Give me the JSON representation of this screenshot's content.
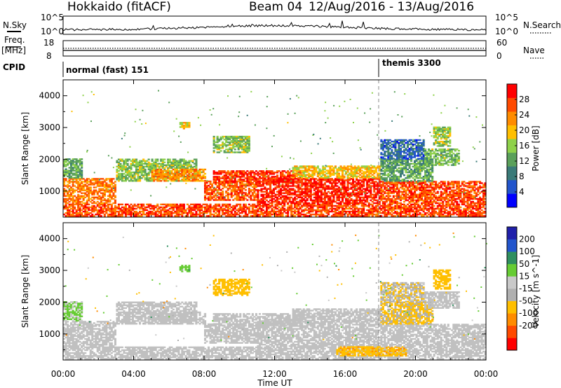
{
  "header": {
    "radar": "Hokkaido (fitACF)",
    "beam": "Beam 04",
    "dates": "12/Aug/2016 - 13/Aug/2016"
  },
  "strip": {
    "nsky_label": "N.Sky",
    "nsky_top_tick": "10^5",
    "nsky_bottom_tick": "10^0",
    "nsearch_label": "N.Search",
    "nsearch_top_tick": "10^5",
    "nsearch_bottom_tick": "10^0",
    "freq_label": "Freq.",
    "freq_unit": "[MHz]",
    "freq_top_tick": "18",
    "freq_bottom_tick": "8",
    "nave_label": "Nave",
    "nave_top_tick": "60",
    "nave_bottom_tick": "0",
    "cpid_label": "CPID",
    "cpid_segments": [
      {
        "label": "normal (fast) 151",
        "start_hour": 0
      },
      {
        "label": "themis 3300",
        "start_hour": 18
      }
    ]
  },
  "colors": {
    "power_scale": [
      "#0000ff",
      "#2255cc",
      "#3a7a78",
      "#5aa05a",
      "#8ed14a",
      "#ffbf00",
      "#ff8c00",
      "#ff4a00",
      "#ff0000"
    ],
    "velocity_scale": [
      "#ff0000",
      "#ff4a00",
      "#ff8c00",
      "#ffbf00",
      "#b0b0b0",
      "#c9c9c9",
      "#66cc33",
      "#2f8f5f",
      "#2255cc",
      "#2020aa"
    ],
    "ground_scatter": "#c0c0c0"
  },
  "chart_data": [
    {
      "type": "heatmap",
      "title": "",
      "parameter": "Power",
      "x_label": "Time UT",
      "y_label": "Slant Range [km]",
      "x_range_hours": [
        0,
        24
      ],
      "y_range_km": [
        180,
        4500
      ],
      "x_ticks": [
        "00:00",
        "04:00",
        "08:00",
        "12:00",
        "16:00",
        "20:00",
        "00:00"
      ],
      "y_ticks": [
        1000,
        2000,
        3000,
        4000
      ],
      "colorbar": {
        "label": "Power [dB]",
        "min": 0,
        "max": 32,
        "ticks": [
          4,
          8,
          12,
          16,
          20,
          24,
          28
        ]
      },
      "mode_change_hour": 18,
      "echo_regions": [
        {
          "t0": 0.0,
          "t1": 24.0,
          "r0": 200,
          "r1": 600,
          "value": 27
        },
        {
          "t0": 0.0,
          "t1": 3.0,
          "r0": 600,
          "r1": 1400,
          "value": 24
        },
        {
          "t0": 0.0,
          "t1": 1.0,
          "r0": 1400,
          "r1": 2000,
          "value": 13
        },
        {
          "t0": 3.0,
          "t1": 7.5,
          "r0": 1300,
          "r1": 2000,
          "value": 15
        },
        {
          "t0": 5.0,
          "t1": 8.0,
          "r0": 1300,
          "r1": 1700,
          "value": 23
        },
        {
          "t0": 8.0,
          "t1": 11.0,
          "r0": 700,
          "r1": 1300,
          "value": 26
        },
        {
          "t0": 8.5,
          "t1": 13.5,
          "r0": 1250,
          "r1": 1650,
          "value": 28
        },
        {
          "t0": 11.0,
          "t1": 18.0,
          "r0": 600,
          "r1": 1400,
          "value": 29
        },
        {
          "t0": 13.0,
          "t1": 18.0,
          "r0": 1400,
          "r1": 1800,
          "value": 20
        },
        {
          "t0": 6.6,
          "t1": 7.1,
          "r0": 2950,
          "r1": 3150,
          "value": 20
        },
        {
          "t0": 8.5,
          "t1": 10.5,
          "r0": 2200,
          "r1": 2700,
          "value": 15
        },
        {
          "t0": 18.0,
          "t1": 24.0,
          "r0": 600,
          "r1": 1300,
          "value": 27
        },
        {
          "t0": 18.0,
          "t1": 21.0,
          "r0": 1300,
          "r1": 2000,
          "value": 12
        },
        {
          "t0": 18.0,
          "t1": 20.5,
          "r0": 2000,
          "r1": 2600,
          "value": 7
        },
        {
          "t0": 20.5,
          "t1": 22.5,
          "r0": 1800,
          "r1": 2300,
          "value": 14
        },
        {
          "t0": 21.0,
          "t1": 22.0,
          "r0": 2400,
          "r1": 3000,
          "value": 16
        }
      ]
    },
    {
      "type": "heatmap",
      "title": "",
      "parameter": "Velocity",
      "x_label": "Time UT",
      "y_label": "Slant Range [km]",
      "x_range_hours": [
        0,
        24
      ],
      "y_range_km": [
        180,
        4500
      ],
      "x_ticks": [
        "00:00",
        "04:00",
        "08:00",
        "12:00",
        "16:00",
        "20:00",
        "00:00"
      ],
      "y_ticks": [
        1000,
        2000,
        3000,
        4000
      ],
      "colorbar": {
        "label": "Velocity [m s^-1]",
        "ticks": [
          200,
          100,
          50,
          15,
          -15,
          -50,
          -100,
          -200
        ]
      },
      "mode_change_hour": 18,
      "echo_regions": [
        {
          "t0": 0.0,
          "t1": 24.0,
          "r0": 200,
          "r1": 600,
          "value": 0,
          "gs": true
        },
        {
          "t0": 0.0,
          "t1": 3.0,
          "r0": 600,
          "r1": 1400,
          "value": 0,
          "gs": true
        },
        {
          "t0": 0.0,
          "t1": 1.0,
          "r0": 1400,
          "r1": 2000,
          "value": 20
        },
        {
          "t0": 3.0,
          "t1": 7.5,
          "r0": 1300,
          "r1": 2000,
          "value": 0,
          "gs": true
        },
        {
          "t0": 5.0,
          "t1": 8.0,
          "r0": 1300,
          "r1": 1700,
          "value": 0,
          "gs": true
        },
        {
          "t0": 8.0,
          "t1": 11.0,
          "r0": 700,
          "r1": 1300,
          "value": 0,
          "gs": true
        },
        {
          "t0": 8.5,
          "t1": 13.5,
          "r0": 1250,
          "r1": 1650,
          "value": 0,
          "gs": true
        },
        {
          "t0": 11.0,
          "t1": 18.0,
          "r0": 600,
          "r1": 1400,
          "value": 0,
          "gs": true
        },
        {
          "t0": 13.0,
          "t1": 18.0,
          "r0": 1400,
          "r1": 1800,
          "value": 0,
          "gs": true
        },
        {
          "t0": 15.5,
          "t1": 19.5,
          "r0": 300,
          "r1": 600,
          "value": -40
        },
        {
          "t0": 6.6,
          "t1": 7.1,
          "r0": 2950,
          "r1": 3150,
          "value": 40
        },
        {
          "t0": 8.5,
          "t1": 10.5,
          "r0": 2200,
          "r1": 2700,
          "value": -30
        },
        {
          "t0": 18.0,
          "t1": 24.0,
          "r0": 600,
          "r1": 1300,
          "value": 0,
          "gs": true
        },
        {
          "t0": 18.0,
          "t1": 21.0,
          "r0": 1300,
          "r1": 2000,
          "value": -20
        },
        {
          "t0": 18.0,
          "t1": 20.5,
          "r0": 2000,
          "r1": 2600,
          "value": -10
        },
        {
          "t0": 20.5,
          "t1": 22.5,
          "r0": 1800,
          "r1": 2300,
          "value": 0,
          "gs": true
        },
        {
          "t0": 21.0,
          "t1": 22.0,
          "r0": 2400,
          "r1": 3000,
          "value": -35
        }
      ]
    }
  ]
}
